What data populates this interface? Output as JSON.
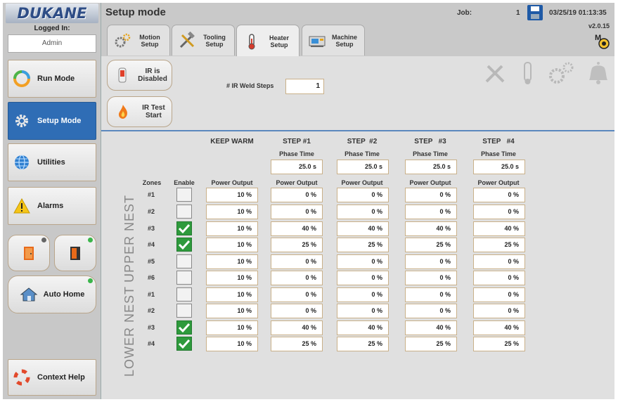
{
  "app": {
    "logo": "DUKANE",
    "title": "Setup mode",
    "job_label": "Job:",
    "job_number": "1",
    "datetime": "03/25/19 01:13:35",
    "version": "v2.0.15"
  },
  "login": {
    "label": "Logged In:",
    "user": "Admin"
  },
  "sidebar": {
    "run_mode": "Run Mode",
    "setup_mode": "Setup Mode",
    "utilities": "Utilities",
    "alarms": "Alarms",
    "auto_home": "Auto Home",
    "context_help": "Context Help"
  },
  "tabs": [
    {
      "label": "Motion Setup",
      "icon": "gears-icon"
    },
    {
      "label": "Tooling Setup",
      "icon": "tools-icon"
    },
    {
      "label": "Heater Setup",
      "icon": "thermometer-icon",
      "active": true
    },
    {
      "label": "Machine Setup",
      "icon": "machine-icon"
    }
  ],
  "controls": {
    "ir_disabled": "IR is Disabled",
    "ir_test_start": "IR Test Start",
    "ir_weld_steps_label": "# IR Weld Steps",
    "ir_weld_steps_value": "1"
  },
  "columns": {
    "zones": "Zones",
    "enable": "Enable",
    "keep_warm": "KEEP WARM",
    "steps": [
      "STEP #1",
      "STEP  #2",
      "STEP   #3",
      "STEP   #4"
    ],
    "phase_time_label": "Phase Time",
    "power_output_label": "Power Output",
    "phase_times": [
      "25.0 s",
      "25.0 s",
      "25.0 s",
      "25.0 s"
    ]
  },
  "nests": {
    "upper": "UPPER NEST",
    "lower": "LOWER NEST"
  },
  "rows": [
    {
      "zone": "#1",
      "enabled": false,
      "keep_warm": "10 %",
      "steps": [
        "0 %",
        "0 %",
        "0 %",
        "0 %"
      ]
    },
    {
      "zone": "#2",
      "enabled": false,
      "keep_warm": "10 %",
      "steps": [
        "0 %",
        "0 %",
        "0 %",
        "0 %"
      ]
    },
    {
      "zone": "#3",
      "enabled": true,
      "keep_warm": "10 %",
      "steps": [
        "40 %",
        "40 %",
        "40 %",
        "40 %"
      ]
    },
    {
      "zone": "#4",
      "enabled": true,
      "keep_warm": "10 %",
      "steps": [
        "25 %",
        "25 %",
        "25 %",
        "25 %"
      ]
    },
    {
      "zone": "#5",
      "enabled": false,
      "keep_warm": "10 %",
      "steps": [
        "0 %",
        "0 %",
        "0 %",
        "0 %"
      ]
    },
    {
      "zone": "#6",
      "enabled": false,
      "keep_warm": "10 %",
      "steps": [
        "0 %",
        "0 %",
        "0 %",
        "0 %"
      ]
    },
    {
      "zone": "#1",
      "enabled": false,
      "keep_warm": "10 %",
      "steps": [
        "0 %",
        "0 %",
        "0 %",
        "0 %"
      ]
    },
    {
      "zone": "#2",
      "enabled": false,
      "keep_warm": "10 %",
      "steps": [
        "0 %",
        "0 %",
        "0 %",
        "0 %"
      ]
    },
    {
      "zone": "#3",
      "enabled": true,
      "keep_warm": "10 %",
      "steps": [
        "40 %",
        "40 %",
        "40 %",
        "40 %"
      ]
    },
    {
      "zone": "#4",
      "enabled": true,
      "keep_warm": "10 %",
      "steps": [
        "25 %",
        "25 %",
        "25 %",
        "25 %"
      ]
    }
  ],
  "colors": {
    "active_blue": "#2f6db5",
    "check_green": "#2e9a3c",
    "field_border": "#c9b089",
    "status_green": "#3ab54a",
    "status_gray": "#666666"
  }
}
